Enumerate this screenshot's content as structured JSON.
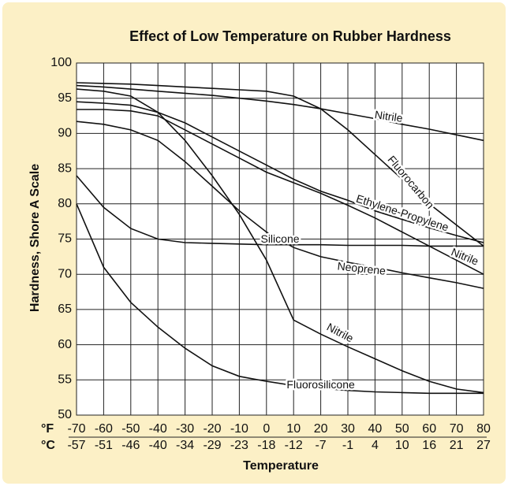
{
  "chart_data": {
    "type": "line",
    "title": "Effect of Low Temperature on Rubber Hardness",
    "ylabel": "Hardness, Shore A Scale",
    "xlabel": "Temperature",
    "fahrenheit_label": "°F",
    "celsius_label": "°C",
    "x": [
      -70,
      -60,
      -50,
      -40,
      -30,
      -20,
      -10,
      0,
      10,
      20,
      30,
      40,
      50,
      60,
      70,
      80
    ],
    "xlim": [
      -70,
      80
    ],
    "xticks": [
      -70,
      -60,
      -50,
      -40,
      -30,
      -20,
      -10,
      0,
      10,
      20,
      30,
      40,
      50,
      60,
      70,
      80
    ],
    "xticks_celsius": [
      -57,
      -51,
      -46,
      -40,
      -34,
      -29,
      -23,
      -18,
      -12,
      -7,
      -1,
      4,
      10,
      16,
      21,
      27
    ],
    "ylim": [
      50,
      100
    ],
    "yticks": [
      50,
      55,
      60,
      65,
      70,
      75,
      80,
      85,
      90,
      95,
      100
    ],
    "grid": true,
    "series": [
      {
        "name": "Nitrile",
        "color": "#111111",
        "values": [
          96.8,
          96.6,
          96.3,
          96.0,
          95.7,
          95.4,
          95.0,
          94.6,
          94.1,
          93.5,
          92.8,
          92.1,
          91.3,
          90.6,
          89.8,
          89.0
        ]
      },
      {
        "name": "Fluorocarbon",
        "color": "#111111",
        "values": [
          97.2,
          97.1,
          97.0,
          96.8,
          96.6,
          96.4,
          96.2,
          96.0,
          95.3,
          93.5,
          90.5,
          87.0,
          83.5,
          80.0,
          77.0,
          74.0
        ]
      },
      {
        "name": "Ethylene-Propylene",
        "color": "#111111",
        "values": [
          94.5,
          94.3,
          94.0,
          93.0,
          91.5,
          89.5,
          87.5,
          85.5,
          83.5,
          81.8,
          80.5,
          79.0,
          77.8,
          76.6,
          75.5,
          74.5
        ]
      },
      {
        "name": "Silicone",
        "color": "#111111",
        "values": [
          84.0,
          79.5,
          76.5,
          75.0,
          74.5,
          74.4,
          74.3,
          74.2,
          74.2,
          74.2,
          74.1,
          74.1,
          74.1,
          74.0,
          74.0,
          74.0
        ]
      },
      {
        "name": "Nitrile",
        "color": "#111111",
        "values": [
          93.4,
          93.4,
          93.2,
          92.5,
          90.5,
          88.5,
          86.5,
          84.5,
          83.0,
          81.5,
          79.8,
          78.0,
          76.0,
          74.0,
          72.0,
          70.0
        ]
      },
      {
        "name": "Neoprene",
        "color": "#111111",
        "values": [
          91.7,
          91.3,
          90.5,
          89.0,
          86.0,
          82.5,
          79.0,
          76.0,
          73.8,
          72.5,
          71.7,
          71.0,
          70.2,
          69.5,
          68.8,
          68.0
        ]
      },
      {
        "name": "Nitrile",
        "color": "#111111",
        "values": [
          96.3,
          96.0,
          95.3,
          93.0,
          89.0,
          84.0,
          78.5,
          72.0,
          63.5,
          61.5,
          59.7,
          58.0,
          56.3,
          54.8,
          53.7,
          53.2
        ]
      },
      {
        "name": "Fluorosilicone",
        "color": "#111111",
        "values": [
          80.0,
          71.0,
          66.0,
          62.5,
          59.5,
          57.0,
          55.5,
          54.8,
          54.2,
          53.8,
          53.5,
          53.3,
          53.2,
          53.1,
          53.1,
          53.1
        ]
      }
    ]
  }
}
